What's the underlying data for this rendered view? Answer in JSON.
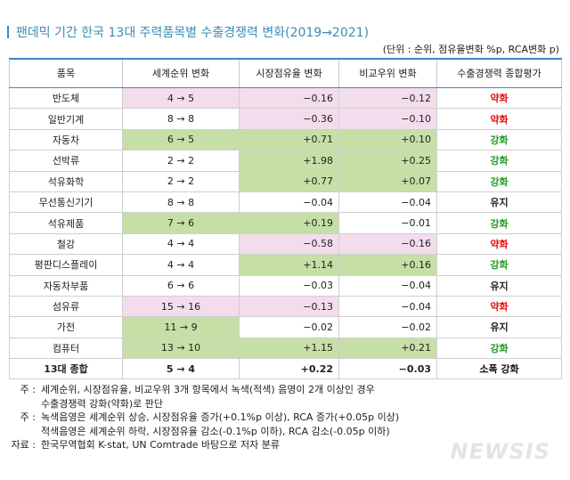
{
  "header": {
    "title": "팬데믹 기간 한국 13대 주력품목별 수출경쟁력 변화(2019→2021)",
    "unit": "(단위 : 순위, 점유율변화 %p, RCA변화 p)"
  },
  "table": {
    "columns": [
      "품목",
      "세계순위 변화",
      "시장점유율 변화",
      "비교우위 변화",
      "수출경쟁력 종합평가"
    ],
    "rows": [
      {
        "cells": [
          "반도체",
          "4 → 5",
          "−0.16",
          "−0.12",
          "약화"
        ],
        "shade": [
          "#f3dcec",
          "#f3dcec",
          "#f3dcec"
        ],
        "eval_color": "#e01010"
      },
      {
        "cells": [
          "일반기계",
          "8 → 8",
          "−0.36",
          "−0.10",
          "약화"
        ],
        "shade": [
          null,
          "#f3dcec",
          "#f3dcec"
        ],
        "eval_color": "#e01010"
      },
      {
        "cells": [
          "자동차",
          "6 → 5",
          "+0.71",
          "+0.10",
          "강화"
        ],
        "shade": [
          "#c6dfa6",
          "#c6dfa6",
          "#c6dfa6"
        ],
        "eval_color": "#1f9a1f"
      },
      {
        "cells": [
          "선박류",
          "2 → 2",
          "+1.98",
          "+0.25",
          "강화"
        ],
        "shade": [
          null,
          "#c6dfa6",
          "#c6dfa6"
        ],
        "eval_color": "#1f9a1f"
      },
      {
        "cells": [
          "석유화학",
          "2 → 2",
          "+0.77",
          "+0.07",
          "강화"
        ],
        "shade": [
          null,
          "#c6dfa6",
          "#c6dfa6"
        ],
        "eval_color": "#1f9a1f"
      },
      {
        "cells": [
          "무선통신기기",
          "8 → 8",
          "−0.04",
          "−0.04",
          "유지"
        ],
        "shade": [
          null,
          null,
          null
        ],
        "eval_color": "#222222"
      },
      {
        "cells": [
          "석유제품",
          "7 → 6",
          "+0.19",
          "−0.01",
          "강화"
        ],
        "shade": [
          "#c6dfa6",
          "#c6dfa6",
          null
        ],
        "eval_color": "#1f9a1f"
      },
      {
        "cells": [
          "철강",
          "4 → 4",
          "−0.58",
          "−0.16",
          "약화"
        ],
        "shade": [
          null,
          "#f3dcec",
          "#f3dcec"
        ],
        "eval_color": "#e01010"
      },
      {
        "cells": [
          "평판디스플레이",
          "4 → 4",
          "+1.14",
          "+0.16",
          "강화"
        ],
        "shade": [
          null,
          "#c6dfa6",
          "#c6dfa6"
        ],
        "eval_color": "#1f9a1f"
      },
      {
        "cells": [
          "자동차부품",
          "6 → 6",
          "−0.03",
          "−0.04",
          "유지"
        ],
        "shade": [
          null,
          null,
          null
        ],
        "eval_color": "#222222"
      },
      {
        "cells": [
          "섬유류",
          "15 → 16",
          "−0.13",
          "−0.04",
          "약화"
        ],
        "shade": [
          "#f3dcec",
          "#f3dcec",
          null
        ],
        "eval_color": "#e01010"
      },
      {
        "cells": [
          "가전",
          "11 → 9",
          "−0.02",
          "−0.02",
          "유지"
        ],
        "shade": [
          "#c6dfa6",
          null,
          null
        ],
        "eval_color": "#222222"
      },
      {
        "cells": [
          "컴퓨터",
          "13 → 10",
          "+1.15",
          "+0.21",
          "강화"
        ],
        "shade": [
          "#c6dfa6",
          "#c6dfa6",
          "#c6dfa6"
        ],
        "eval_color": "#1f9a1f"
      },
      {
        "cells": [
          "13대 종합",
          "5 → 4",
          "+0.22",
          "−0.03",
          "소폭 강화"
        ],
        "shade": [
          null,
          null,
          null
        ],
        "eval_color": "#111111",
        "bold": true
      }
    ]
  },
  "notes": [
    {
      "label": "주 :",
      "lines": [
        "세계순위, 시장점유율, 비교우위 3개 항목에서 녹색(적색) 음영이 2개 이상인 경우",
        "수출경쟁력 강화(약화)로 판단"
      ]
    },
    {
      "label": "주 :",
      "lines": [
        "녹색음영은 세계순위 상승, 시장점유율 증가(+0.1%p 이상), RCA 증가(+0.05p 이상)",
        "적색음영은 세계순위 하락, 시장점유율 감소(-0.1%p 이하), RCA 감소(-0.05p 이하)"
      ]
    },
    {
      "label": "자료 :",
      "lines": [
        "한국무역협회 K-stat, UN Comtrade 바탕으로 저자 분류"
      ]
    }
  ],
  "watermark": "NEWSIS"
}
